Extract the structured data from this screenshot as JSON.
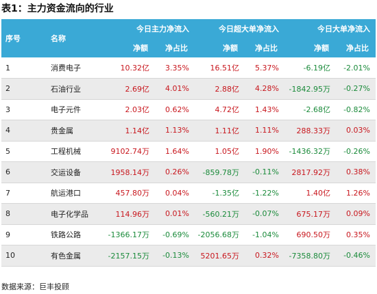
{
  "title": "表1：主力资金流向的行业",
  "header": {
    "index": "序号",
    "name": "名称",
    "groups": [
      "今日主力净流入",
      "今日超大单净流入",
      "今日大单净流入"
    ],
    "sub": [
      "净额",
      "净占比",
      "净额",
      "净占比",
      "净额",
      "净占比"
    ]
  },
  "rows": [
    {
      "idx": "1",
      "name": "消费电子",
      "v": [
        "10.32亿",
        "3.35%",
        "16.51亿",
        "5.37%",
        "-6.19亿",
        "-2.01%"
      ]
    },
    {
      "idx": "2",
      "name": "石油行业",
      "v": [
        "2.69亿",
        "4.01%",
        "2.88亿",
        "4.28%",
        "-1842.95万",
        "-0.27%"
      ]
    },
    {
      "idx": "3",
      "name": "电子元件",
      "v": [
        "2.03亿",
        "0.62%",
        "4.72亿",
        "1.43%",
        "-2.68亿",
        "-0.82%"
      ]
    },
    {
      "idx": "4",
      "name": "贵金属",
      "v": [
        "1.14亿",
        "1.13%",
        "1.11亿",
        "1.11%",
        "288.33万",
        "0.03%"
      ]
    },
    {
      "idx": "5",
      "name": "工程机械",
      "v": [
        "9102.74万",
        "1.64%",
        "1.05亿",
        "1.90%",
        "-1436.32万",
        "-0.26%"
      ]
    },
    {
      "idx": "6",
      "name": "交运设备",
      "v": [
        "1958.14万",
        "0.26%",
        "-859.78万",
        "-0.11%",
        "2817.92万",
        "0.38%"
      ]
    },
    {
      "idx": "7",
      "name": "航运港口",
      "v": [
        "457.80万",
        "0.04%",
        "-1.35亿",
        "-1.22%",
        "1.40亿",
        "1.26%"
      ]
    },
    {
      "idx": "8",
      "name": "电子化学品",
      "v": [
        "114.96万",
        "0.01%",
        "-560.21万",
        "-0.07%",
        "675.17万",
        "0.09%"
      ]
    },
    {
      "idx": "9",
      "name": "铁路公路",
      "v": [
        "-1366.17万",
        "-0.69%",
        "-2056.68万",
        "-1.04%",
        "690.50万",
        "0.35%"
      ]
    },
    {
      "idx": "10",
      "name": "有色金属",
      "v": [
        "-2157.15万",
        "-0.13%",
        "5201.65万",
        "0.32%",
        "-7358.80万",
        "-0.46%"
      ]
    }
  ],
  "source": "数据来源：巨丰投顾",
  "colors": {
    "header_bg": "#3aa9d6",
    "positive": "#c8161d",
    "negative": "#1a8a3a",
    "stripe": "#ebebeb"
  }
}
